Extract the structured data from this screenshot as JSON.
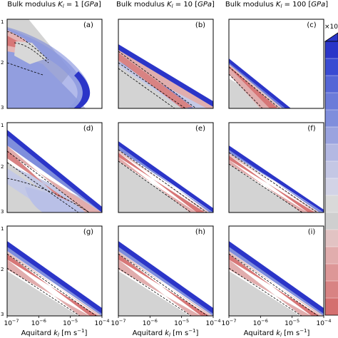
{
  "chart_data": {
    "type": "heatmap",
    "column_titles": [
      {
        "label": "Bulk modulus",
        "math_sym": "K",
        "math_sub": "l",
        "rest": " = 1 [",
        "unit": "GPa",
        "close": "]"
      },
      {
        "label": "Bulk modulus",
        "math_sym": "K",
        "math_sub": "l",
        "rest": " = 10 [",
        "unit": "GPa",
        "close": "]"
      },
      {
        "label": "Bulk modulus",
        "math_sym": "K",
        "math_sub": "l",
        "rest": " = 100 [",
        "unit": "GPa",
        "close": "]"
      }
    ],
    "panel_labels": [
      "(a)",
      "(b)",
      "(c)",
      "(d)",
      "(e)",
      "(f)",
      "(g)",
      "(h)",
      "(i)"
    ],
    "x_axis": {
      "label_text": "Aquitard ",
      "label_math": "k",
      "label_sub": "l",
      "label_units": " [m s",
      "label_units_sup": "−1",
      "label_close": "]",
      "scale": "log",
      "xlim": [
        1e-07,
        0.0001
      ],
      "ticks": [
        {
          "base": "10",
          "exp": "−7"
        },
        {
          "base": "10",
          "exp": "−6"
        },
        {
          "base": "10",
          "exp": "−5"
        },
        {
          "base": "10",
          "exp": "−4"
        }
      ]
    },
    "y_axis": {
      "tick_labels_partial": [
        "1",
        "2",
        "3"
      ]
    },
    "colorbar": {
      "label_partial": "×10",
      "levels": [
        "#2b35c8",
        "#3a4bd2",
        "#5566d6",
        "#6b7bd9",
        "#7f8edc",
        "#9aa3df",
        "#b3b8e2",
        "#c4c7e4",
        "#d2d3e6",
        "#d9d9d9",
        "#cfcfcf",
        "#e2c3c3",
        "#e1adad",
        "#dd9797",
        "#d88383",
        "#d46f6f"
      ]
    },
    "colors": {
      "deep_blue": "#2b35c8",
      "mid_blue": "#6e7fd8",
      "light_blue": "#b4bce6",
      "pale_blue": "#cfd2ea",
      "grey": "#d3d3d3",
      "light_grey": "#e4e4e4",
      "pink": "#e5b3b3",
      "red": "#d77777",
      "axis": "#000000"
    }
  }
}
